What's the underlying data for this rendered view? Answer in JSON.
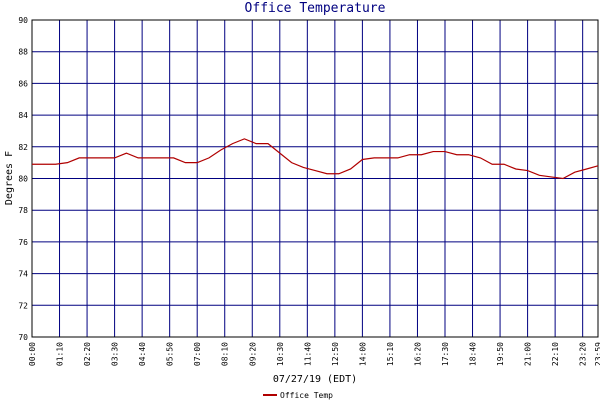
{
  "chart_data": {
    "type": "line",
    "title": "Office Temperature",
    "ylabel": "Degrees F",
    "xlabel": "07/27/19 (EDT)",
    "x": [
      0,
      30,
      60,
      90,
      120,
      150,
      180,
      210,
      240,
      270,
      300,
      330,
      360,
      390,
      420,
      450,
      480,
      510,
      540,
      570,
      600,
      630,
      660,
      690,
      720,
      750,
      780,
      810,
      840,
      870,
      900,
      930,
      960,
      990,
      1020,
      1050,
      1080,
      1110,
      1140,
      1170,
      1200,
      1230,
      1260,
      1290,
      1320,
      1350,
      1380,
      1410,
      1439
    ],
    "series": [
      {
        "name": "Office Temp",
        "color": "#b00000",
        "values": [
          80.9,
          80.9,
          80.9,
          81.0,
          81.3,
          81.3,
          81.3,
          81.3,
          81.6,
          81.3,
          81.3,
          81.3,
          81.3,
          81.0,
          81.0,
          81.3,
          81.8,
          82.2,
          82.5,
          82.2,
          82.2,
          81.6,
          81.0,
          80.7,
          80.5,
          80.3,
          80.3,
          80.6,
          81.2,
          81.3,
          81.3,
          81.3,
          81.5,
          81.5,
          81.7,
          81.7,
          81.5,
          81.5,
          81.3,
          80.9,
          80.9,
          80.6,
          80.5,
          80.2,
          80.1,
          80.0,
          80.4,
          80.6,
          80.8
        ]
      }
    ],
    "xlim": [
      0,
      1439
    ],
    "xticks": [
      {
        "value": 0,
        "label": "00:00"
      },
      {
        "value": 70,
        "label": "01:10"
      },
      {
        "value": 140,
        "label": "02:20"
      },
      {
        "value": 210,
        "label": "03:30"
      },
      {
        "value": 280,
        "label": "04:40"
      },
      {
        "value": 350,
        "label": "05:50"
      },
      {
        "value": 420,
        "label": "07:00"
      },
      {
        "value": 490,
        "label": "08:10"
      },
      {
        "value": 560,
        "label": "09:20"
      },
      {
        "value": 630,
        "label": "10:30"
      },
      {
        "value": 700,
        "label": "11:40"
      },
      {
        "value": 770,
        "label": "12:50"
      },
      {
        "value": 840,
        "label": "14:00"
      },
      {
        "value": 910,
        "label": "15:10"
      },
      {
        "value": 980,
        "label": "16:20"
      },
      {
        "value": 1050,
        "label": "17:30"
      },
      {
        "value": 1120,
        "label": "18:40"
      },
      {
        "value": 1190,
        "label": "19:50"
      },
      {
        "value": 1260,
        "label": "21:00"
      },
      {
        "value": 1330,
        "label": "22:10"
      },
      {
        "value": 1400,
        "label": "23:20"
      },
      {
        "value": 1439,
        "label": "23:59"
      }
    ],
    "ylim": [
      70,
      90
    ],
    "yticks": [
      70,
      72,
      74,
      76,
      78,
      80,
      82,
      84,
      86,
      88,
      90
    ],
    "grid": true,
    "grid_color": "#000080"
  }
}
